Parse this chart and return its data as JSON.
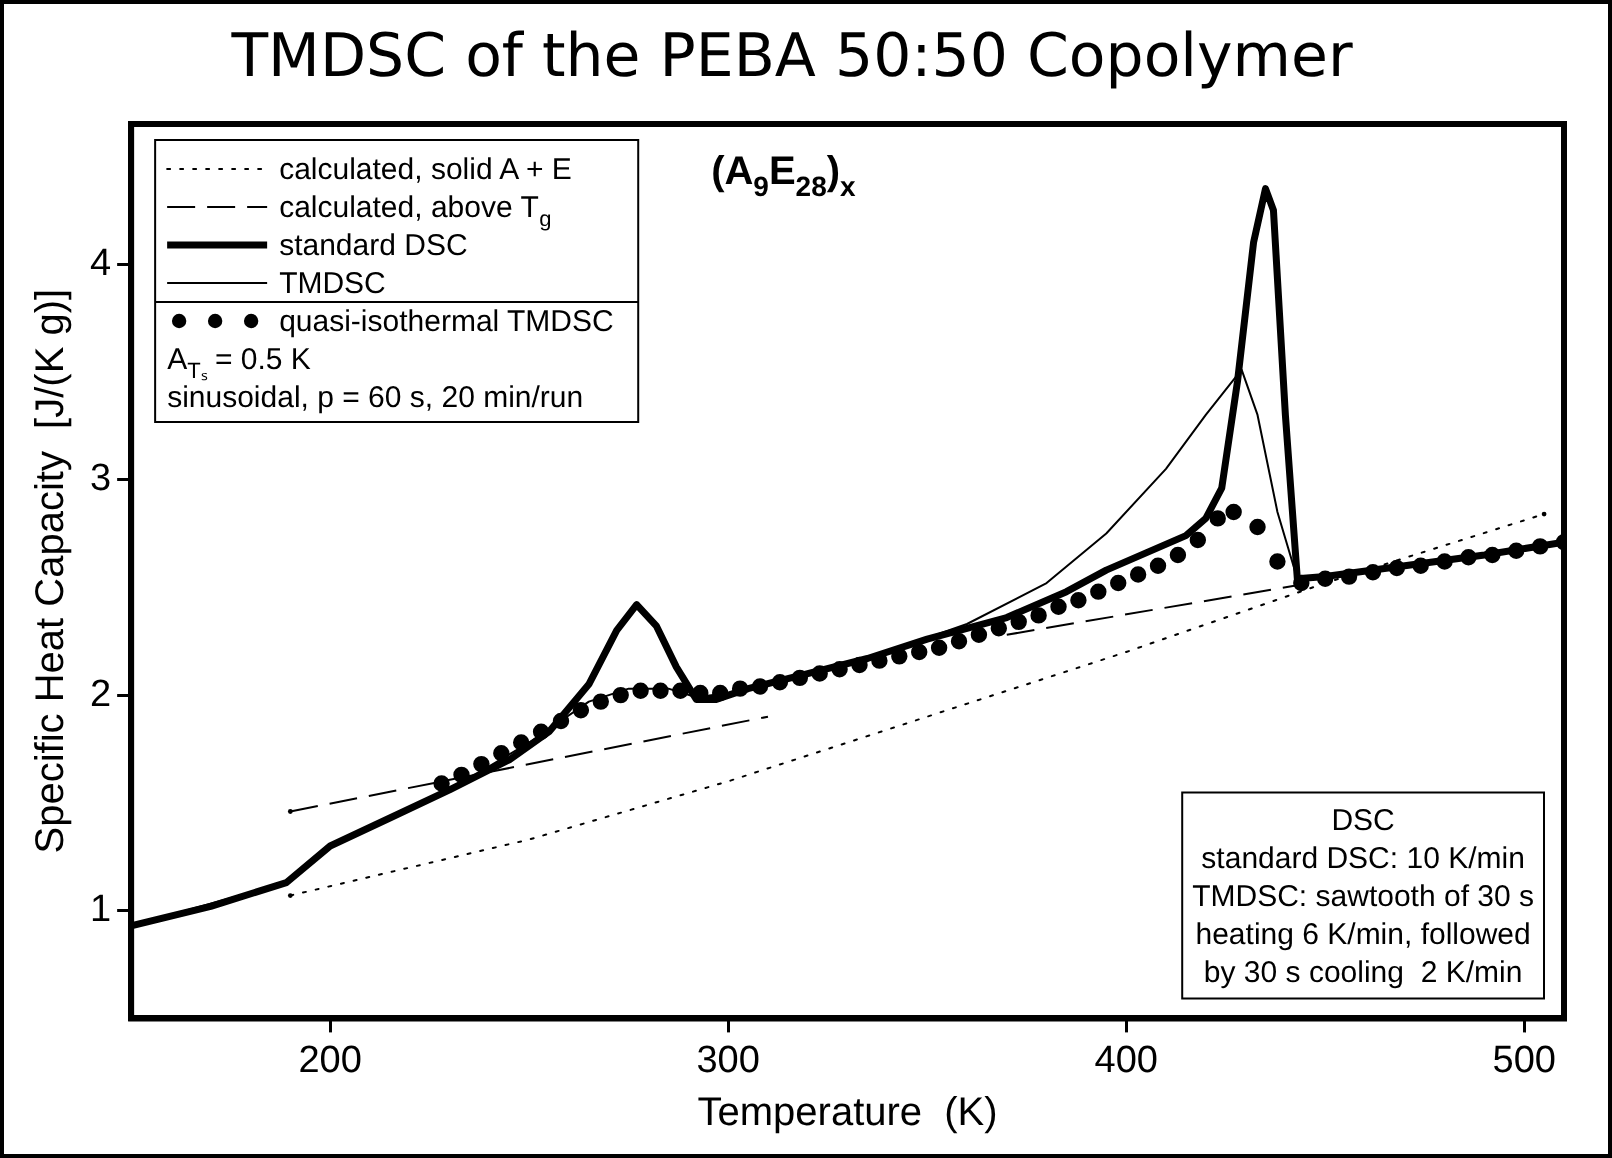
{
  "chart_data": {
    "type": "line",
    "title": "TMDSC of the PEBA 50:50 Copolymer",
    "xlabel": "Temperature  (K)",
    "ylabel": "Specific Heat Capacity  [J/(K g)]",
    "xlim": [
      150,
      510
    ],
    "xticks": [
      200,
      300,
      400,
      500
    ],
    "ylim": [
      0.5,
      4.65
    ],
    "yticks": [
      1,
      2,
      3,
      4
    ],
    "grid": false,
    "legend": "top left",
    "annotations": [
      "(A$_{9}$E$_{28}$)$_{x}$",
      "A$_{Tₛ}$ = 0.5 K\nsinusoidal, p = 60 s, 20 min/run",
      "DSC\nstandard DSC: 10 K/min\nTMDSC: sawtooth of 30 s\nheating 6 K/min, followed\nby 30 s cooling  2 K/min"
    ],
    "series": [
      {
        "name": "calculated, solid A + E",
        "type": "line",
        "line_style": "dotted",
        "color": "#000000",
        "x": [
          190,
          250,
          300,
          350,
          400,
          450,
          505
        ],
        "values": [
          1.07,
          1.33,
          1.6,
          1.9,
          2.2,
          2.52,
          2.84
        ]
      },
      {
        "name": "calculated, above T$_{g}$",
        "type": "line",
        "line_style": "dashed",
        "color": "#000000",
        "x": [
          190,
          310,
          340,
          370,
          443
        ],
        "values": [
          1.46,
          1.9,
          null,
          2.28,
          2.51
        ]
      },
      {
        "name": "standard DSC",
        "type": "line",
        "line_style": "solid",
        "color": "#000000",
        "x": [
          150,
          170,
          189,
          200,
          215,
          230,
          245,
          255,
          265,
          272,
          277,
          282,
          287,
          292,
          297,
          305,
          320,
          335,
          350,
          370,
          385,
          395,
          405,
          415,
          420,
          424,
          428,
          432,
          435,
          437,
          440,
          443,
          450,
          470,
          490,
          510
        ],
        "values": [
          0.93,
          1.02,
          1.13,
          1.3,
          1.43,
          1.56,
          1.7,
          1.83,
          2.05,
          2.3,
          2.42,
          2.32,
          2.13,
          1.98,
          1.98,
          2.03,
          2.1,
          2.17,
          2.26,
          2.36,
          2.48,
          2.58,
          2.66,
          2.74,
          2.82,
          2.96,
          3.46,
          4.1,
          4.35,
          4.25,
          3.3,
          2.54,
          2.55,
          2.6,
          2.65,
          2.71
        ]
      },
      {
        "name": "TMDSC",
        "type": "line",
        "line_style": "solid",
        "color": "#000000",
        "x": [
          150,
          189,
          200,
          230,
          250,
          265,
          275,
          285,
          292,
          300,
          320,
          340,
          360,
          380,
          395,
          410,
          420,
          429,
          433,
          438,
          443,
          460,
          480,
          510
        ],
        "values": [
          0.93,
          1.13,
          1.3,
          1.56,
          1.78,
          1.97,
          2.03,
          2.03,
          1.99,
          2.01,
          2.1,
          2.2,
          2.33,
          2.52,
          2.75,
          3.05,
          3.3,
          3.51,
          3.3,
          2.85,
          2.54,
          2.58,
          2.62,
          2.71
        ]
      },
      {
        "name": "quasi-isothermal TMDSC",
        "type": "scatter",
        "marker": "circle",
        "color": "#000000",
        "x": [
          228,
          233,
          238,
          243,
          248,
          253,
          258,
          263,
          268,
          273,
          278,
          283,
          288,
          293,
          298,
          303,
          308,
          313,
          318,
          323,
          328,
          333,
          338,
          343,
          348,
          353,
          358,
          363,
          368,
          373,
          378,
          383,
          388,
          393,
          398,
          403,
          408,
          413,
          418,
          423,
          427,
          433,
          438,
          444,
          450,
          456,
          462,
          468,
          474,
          480,
          486,
          492,
          498,
          504,
          510
        ],
        "values": [
          1.59,
          1.63,
          1.68,
          1.73,
          1.78,
          1.83,
          1.88,
          1.93,
          1.97,
          2.0,
          2.02,
          2.02,
          2.02,
          2.01,
          2.01,
          2.03,
          2.04,
          2.06,
          2.08,
          2.1,
          2.12,
          2.14,
          2.16,
          2.18,
          2.2,
          2.22,
          2.25,
          2.28,
          2.31,
          2.34,
          2.37,
          2.41,
          2.44,
          2.48,
          2.52,
          2.56,
          2.6,
          2.65,
          2.72,
          2.82,
          2.85,
          2.78,
          2.62,
          2.52,
          2.54,
          2.55,
          2.57,
          2.59,
          2.6,
          2.62,
          2.64,
          2.65,
          2.67,
          2.69,
          2.71
        ]
      }
    ]
  }
}
